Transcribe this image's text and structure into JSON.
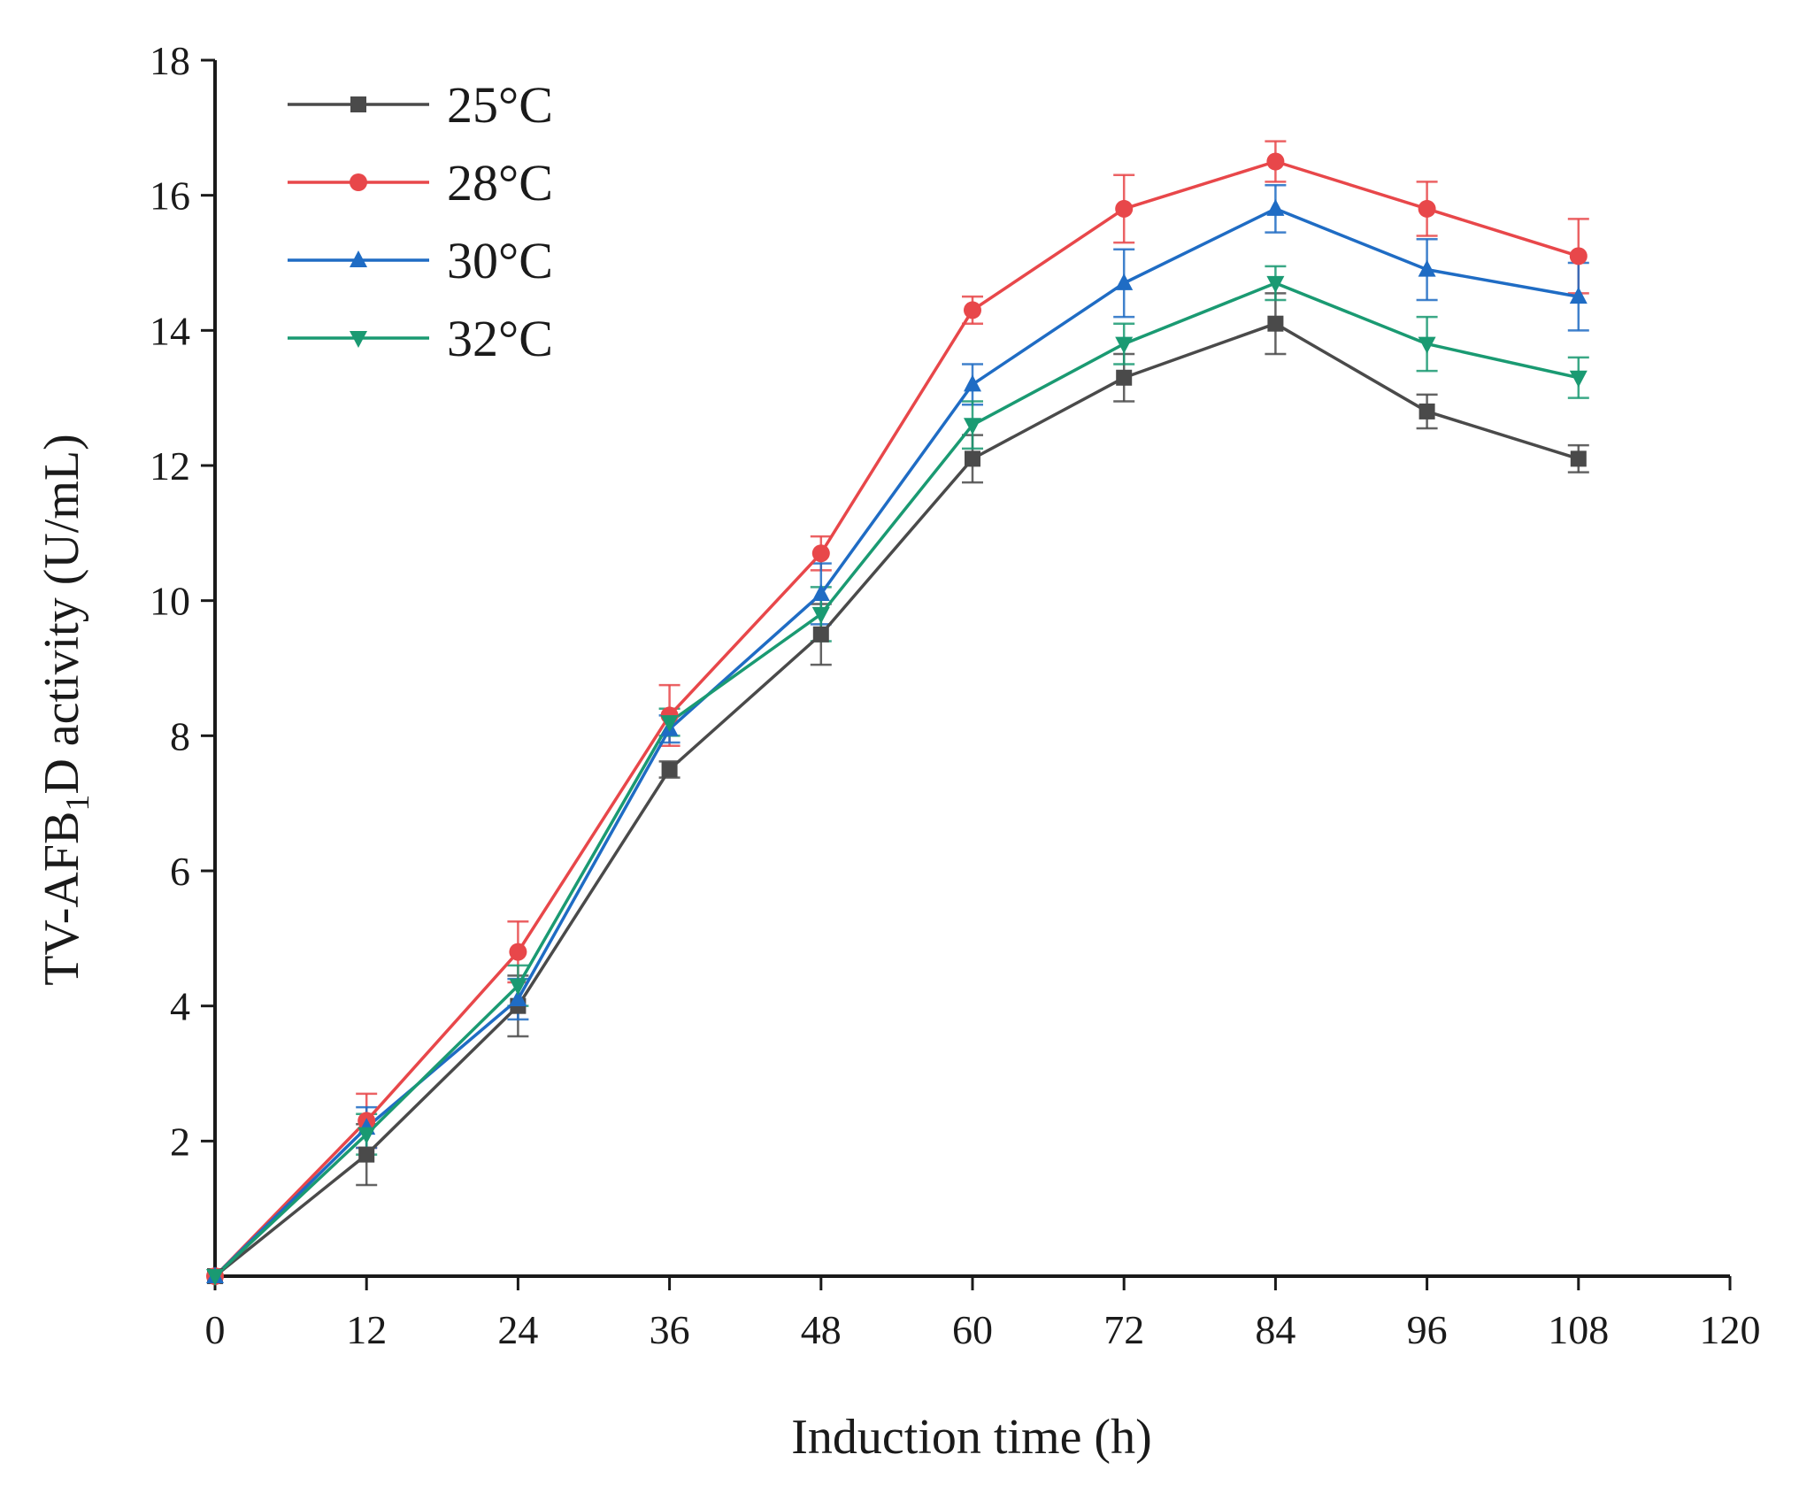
{
  "chart_data": {
    "type": "line",
    "xlabel": "Induction time (h)",
    "ylabel_parts": [
      "TV-AFB",
      "1",
      "D activity (U/mL)"
    ],
    "xlim": [
      0,
      120
    ],
    "ylim": [
      0,
      18
    ],
    "x_ticks": [
      0,
      12,
      24,
      36,
      48,
      60,
      72,
      84,
      96,
      108,
      120
    ],
    "y_ticks": [
      2,
      4,
      6,
      8,
      10,
      12,
      14,
      16,
      18
    ],
    "legend_position": "top-left",
    "grid": false,
    "x": [
      0,
      12,
      24,
      36,
      48,
      60,
      72,
      84,
      96,
      108
    ],
    "series": [
      {
        "name": "25°C",
        "color": "#4a4a4a",
        "marker": "square",
        "values": [
          0,
          1.8,
          4.0,
          7.5,
          9.5,
          12.1,
          13.3,
          14.1,
          12.8,
          12.1
        ],
        "errors": [
          0,
          0.45,
          0.45,
          0.12,
          0.45,
          0.35,
          0.35,
          0.45,
          0.25,
          0.2
        ]
      },
      {
        "name": "28°C",
        "color": "#e8474a",
        "marker": "circle",
        "values": [
          0,
          2.3,
          4.8,
          8.3,
          10.7,
          14.3,
          15.8,
          16.5,
          15.8,
          15.1
        ],
        "errors": [
          0,
          0.4,
          0.45,
          0.45,
          0.25,
          0.2,
          0.5,
          0.3,
          0.4,
          0.55
        ]
      },
      {
        "name": "30°C",
        "color": "#1f6cc4",
        "marker": "triangle-up",
        "values": [
          0,
          2.2,
          4.1,
          8.1,
          10.1,
          13.2,
          14.7,
          15.8,
          14.9,
          14.5
        ],
        "errors": [
          0,
          0.3,
          0.3,
          0.2,
          0.45,
          0.3,
          0.5,
          0.35,
          0.45,
          0.5
        ]
      },
      {
        "name": "32°C",
        "color": "#1a9a72",
        "marker": "triangle-down",
        "values": [
          0,
          2.1,
          4.3,
          8.2,
          9.8,
          12.6,
          13.8,
          14.7,
          13.8,
          13.3
        ],
        "errors": [
          0,
          0.3,
          0.3,
          0.2,
          0.4,
          0.35,
          0.3,
          0.25,
          0.4,
          0.3
        ]
      }
    ]
  }
}
